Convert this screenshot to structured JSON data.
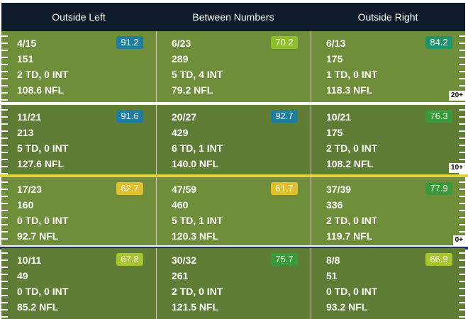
{
  "columns": [
    {
      "label": "Outside Left"
    },
    {
      "label": "Between Numbers"
    },
    {
      "label": "Outside Right"
    }
  ],
  "rows": [
    {
      "yard_label": "20+",
      "divider_color": "#ffffff",
      "shade": "light",
      "cells": [
        {
          "comp_att": "4/15",
          "yards": "151",
          "td_int": "2 TD, 0 INT",
          "rating": "108.6 NFL",
          "grade": "91.2",
          "grade_color": "#1f7d9e"
        },
        {
          "comp_att": "6/23",
          "yards": "289",
          "td_int": "5 TD, 4 INT",
          "rating": "79.2 NFL",
          "grade": "70.2",
          "grade_color": "#8dbf2e"
        },
        {
          "comp_att": "6/13",
          "yards": "175",
          "td_int": "1 TD, 0 INT",
          "rating": "118.3 NFL",
          "grade": "84.2",
          "grade_color": "#20936a"
        }
      ]
    },
    {
      "yard_label": "10+",
      "divider_color": "#e4d23a",
      "shade": "dark",
      "cells": [
        {
          "comp_att": "11/21",
          "yards": "213",
          "td_int": "5 TD, 0 INT",
          "rating": "127.6 NFL",
          "grade": "91.6",
          "grade_color": "#1f7d9e"
        },
        {
          "comp_att": "20/27",
          "yards": "429",
          "td_int": "6 TD, 1 INT",
          "rating": "140.0 NFL",
          "grade": "92.7",
          "grade_color": "#1f7d9e"
        },
        {
          "comp_att": "10/21",
          "yards": "175",
          "td_int": "2 TD, 0 INT",
          "rating": "108.2 NFL",
          "grade": "76.3",
          "grade_color": "#3a9a3a"
        }
      ]
    },
    {
      "yard_label": "0+",
      "divider_color": "#1d3270",
      "shade": "light",
      "cells": [
        {
          "comp_att": "17/23",
          "yards": "160",
          "td_int": "0 TD, 0 INT",
          "rating": "92.7 NFL",
          "grade": "62.7",
          "grade_color": "#e0c030"
        },
        {
          "comp_att": "47/59",
          "yards": "460",
          "td_int": "5 TD, 1 INT",
          "rating": "120.3 NFL",
          "grade": "61.7",
          "grade_color": "#e0c030"
        },
        {
          "comp_att": "37/39",
          "yards": "336",
          "td_int": "2 TD, 0 INT",
          "rating": "119.7 NFL",
          "grade": "77.9",
          "grade_color": "#3a9a3a"
        }
      ]
    },
    {
      "yard_label": "",
      "divider_color": "",
      "shade": "dark",
      "cells": [
        {
          "comp_att": "10/11",
          "yards": "49",
          "td_int": "0 TD, 0 INT",
          "rating": "85.2 NFL",
          "grade": "67.8",
          "grade_color": "#a8c42e"
        },
        {
          "comp_att": "30/32",
          "yards": "261",
          "td_int": "2 TD, 0 INT",
          "rating": "121.5 NFL",
          "grade": "75.7",
          "grade_color": "#3a9a3a"
        },
        {
          "comp_att": "8/8",
          "yards": "51",
          "td_int": "0 TD, 0 INT",
          "rating": "93.2 NFL",
          "grade": "66.9",
          "grade_color": "#a8c42e"
        }
      ]
    }
  ]
}
